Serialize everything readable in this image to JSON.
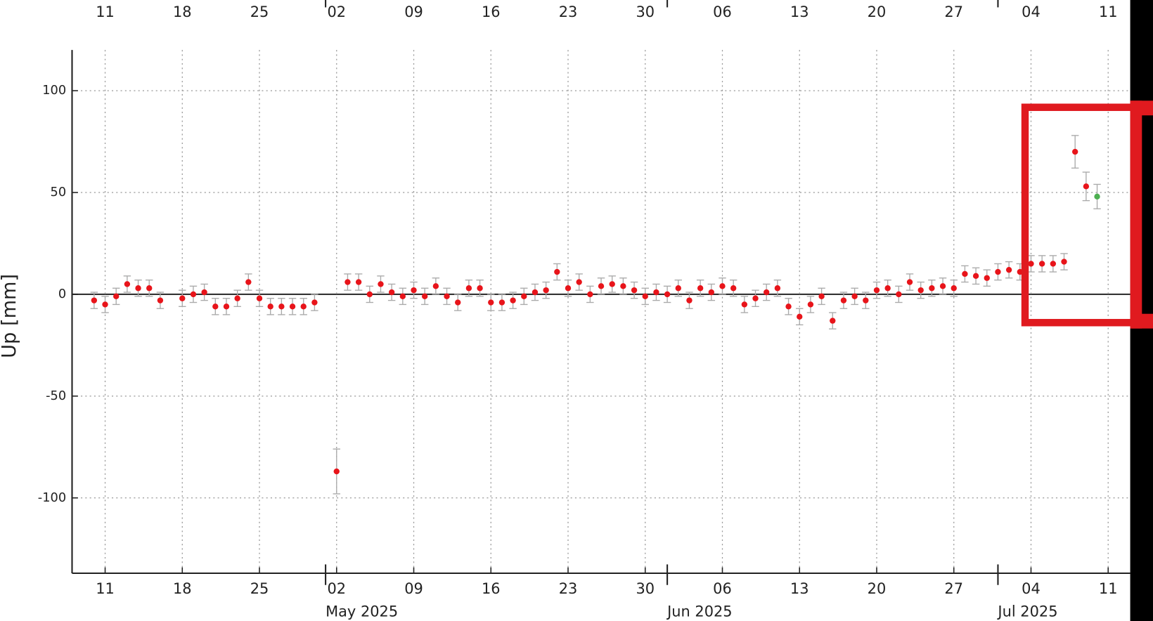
{
  "chart_data": {
    "type": "scatter",
    "y_label": "Up [mm]",
    "xlim": [
      "2025-04-08",
      "2025-07-13"
    ],
    "xticks": [
      {
        "value": "2025-04-11",
        "label": "11"
      },
      {
        "value": "2025-04-18",
        "label": "18"
      },
      {
        "value": "2025-04-25",
        "label": "25"
      },
      {
        "value": "2025-05-02",
        "label": "02"
      },
      {
        "value": "2025-05-09",
        "label": "09"
      },
      {
        "value": "2025-05-16",
        "label": "16"
      },
      {
        "value": "2025-05-23",
        "label": "23"
      },
      {
        "value": "2025-05-30",
        "label": "30"
      },
      {
        "value": "2025-06-06",
        "label": "06"
      },
      {
        "value": "2025-06-13",
        "label": "13"
      },
      {
        "value": "2025-06-20",
        "label": "20"
      },
      {
        "value": "2025-06-27",
        "label": "27"
      },
      {
        "value": "2025-07-04",
        "label": "04"
      },
      {
        "value": "2025-07-11",
        "label": "11"
      }
    ],
    "month_ticks": [
      {
        "value": "2025-05-01",
        "label": "May 2025"
      },
      {
        "value": "2025-06-01",
        "label": "Jun 2025"
      },
      {
        "value": "2025-07-01",
        "label": "Jul 2025"
      }
    ],
    "ylim": [
      -137,
      120
    ],
    "yticks": [
      -100,
      -50,
      0,
      50,
      100
    ],
    "grid": true,
    "zero_line": true,
    "series": [
      {
        "color": "#e8141a",
        "x": [
          "2025-04-10",
          "2025-04-11",
          "2025-04-12",
          "2025-04-13",
          "2025-04-14",
          "2025-04-15",
          "2025-04-16",
          "2025-04-18",
          "2025-04-19",
          "2025-04-20",
          "2025-04-21",
          "2025-04-22",
          "2025-04-23",
          "2025-04-24",
          "2025-04-25",
          "2025-04-26",
          "2025-04-27",
          "2025-04-28",
          "2025-04-29",
          "2025-04-30",
          "2025-05-02",
          "2025-05-03",
          "2025-05-04",
          "2025-05-05",
          "2025-05-06",
          "2025-05-07",
          "2025-05-08",
          "2025-05-09",
          "2025-05-10",
          "2025-05-11",
          "2025-05-12",
          "2025-05-13",
          "2025-05-14",
          "2025-05-15",
          "2025-05-16",
          "2025-05-17",
          "2025-05-18",
          "2025-05-19",
          "2025-05-20",
          "2025-05-21",
          "2025-05-22",
          "2025-05-23",
          "2025-05-24",
          "2025-05-25",
          "2025-05-26",
          "2025-05-27",
          "2025-05-28",
          "2025-05-29",
          "2025-05-30",
          "2025-05-31",
          "2025-06-01",
          "2025-06-02",
          "2025-06-03",
          "2025-06-04",
          "2025-06-05",
          "2025-06-06",
          "2025-06-07",
          "2025-06-08",
          "2025-06-09",
          "2025-06-10",
          "2025-06-11",
          "2025-06-12",
          "2025-06-13",
          "2025-06-14",
          "2025-06-15",
          "2025-06-16",
          "2025-06-17",
          "2025-06-18",
          "2025-06-19",
          "2025-06-20",
          "2025-06-21",
          "2025-06-22",
          "2025-06-23",
          "2025-06-24",
          "2025-06-25",
          "2025-06-26",
          "2025-06-27",
          "2025-06-28",
          "2025-06-29",
          "2025-06-30",
          "2025-07-01",
          "2025-07-02",
          "2025-07-03",
          "2025-07-04",
          "2025-07-05",
          "2025-07-06",
          "2025-07-07",
          "2025-07-08",
          "2025-07-09"
        ],
        "values": [
          -3,
          -5,
          -1,
          5,
          3,
          3,
          -3,
          -2,
          0,
          1,
          -6,
          -6,
          -2,
          6,
          -2,
          -6,
          -6,
          -6,
          -6,
          -4,
          -87,
          6,
          6,
          0,
          5,
          1,
          -1,
          2,
          -1,
          4,
          -1,
          -4,
          3,
          3,
          -4,
          -4,
          -3,
          -1,
          1,
          2,
          11,
          3,
          6,
          0,
          4,
          5,
          4,
          2,
          -1,
          1,
          0,
          3,
          -3,
          3,
          1,
          4,
          3,
          -5,
          -2,
          1,
          3,
          -6,
          -11,
          -5,
          -1,
          -13,
          -3,
          -1,
          -3,
          2,
          3,
          0,
          6,
          2,
          3,
          4,
          3,
          10,
          9,
          8,
          11,
          12,
          11,
          15,
          15,
          15,
          16,
          70,
          53
        ],
        "errors": [
          4,
          4,
          4,
          4,
          4,
          4,
          4,
          4,
          4,
          4,
          4,
          4,
          4,
          4,
          4,
          4,
          4,
          4,
          4,
          4,
          11,
          4,
          4,
          4,
          4,
          4,
          4,
          4,
          4,
          4,
          4,
          4,
          4,
          4,
          4,
          4,
          4,
          4,
          4,
          4,
          4,
          4,
          4,
          4,
          4,
          4,
          4,
          4,
          4,
          4,
          4,
          4,
          4,
          4,
          4,
          4,
          4,
          4,
          4,
          4,
          4,
          4,
          4,
          4,
          4,
          4,
          4,
          4,
          4,
          4,
          4,
          4,
          4,
          4,
          4,
          4,
          4,
          4,
          4,
          4,
          4,
          4,
          4,
          4,
          4,
          4,
          4,
          8,
          7
        ]
      },
      {
        "color": "#4caf50",
        "x": [
          "2025-07-10"
        ],
        "values": [
          48
        ],
        "errors": [
          6
        ]
      }
    ]
  }
}
